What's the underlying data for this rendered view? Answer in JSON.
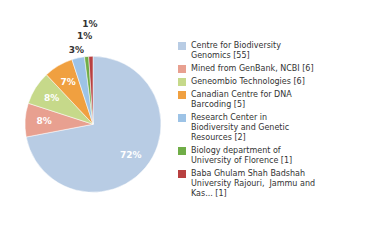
{
  "chart_data": {
    "type": "pie",
    "categories": [
      "Centre for Biodiversity\nGenomics [55]",
      "Mined from GenBank, NCBI [6]",
      "Geneombio Technologies [6]",
      "Canadian Centre for DNA\nBarcoding [5]",
      "Research Center in\nBiodiversity and Genetic\nResources [2]",
      "Biology department of\nUniversity of Florence [1]",
      "Baba Ghulam Shah Badshah\nUniversity Rajouri,  Jammu and\nKas... [1]"
    ],
    "values": [
      72,
      8,
      8,
      7,
      3,
      1,
      1
    ],
    "value_labels": [
      "72%",
      "8%",
      "8%",
      "7%",
      "3%",
      "1%",
      "1%"
    ],
    "colors": [
      "#b8cce4",
      "#e8a090",
      "#c6d98a",
      "#f0a040",
      "#9dc3e6",
      "#70ad47",
      "#b84040"
    ],
    "data_labels": true,
    "legend": "right"
  }
}
